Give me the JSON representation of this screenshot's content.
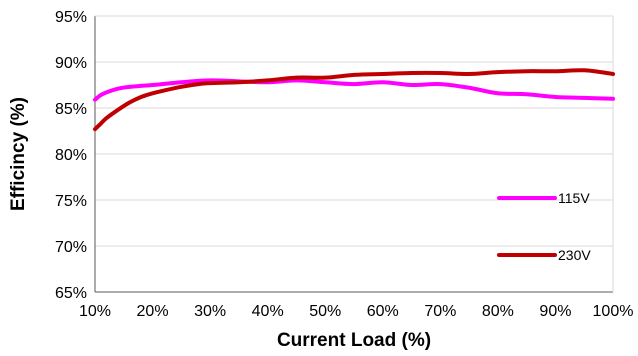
{
  "chart_data": {
    "type": "line",
    "title": "",
    "xlabel": "Current Load (%)",
    "ylabel": "Efficincy (%)",
    "xlim": [
      10,
      100
    ],
    "ylim": [
      65,
      95
    ],
    "x_ticks": [
      "10%",
      "20%",
      "30%",
      "40%",
      "50%",
      "60%",
      "70%",
      "80%",
      "90%",
      "100%"
    ],
    "y_ticks": [
      "65%",
      "70%",
      "75%",
      "80%",
      "85%",
      "90%",
      "95%"
    ],
    "grid": true,
    "legend_position": "right",
    "series": [
      {
        "name": "115V",
        "color": "#ff00ff",
        "x": [
          10,
          11,
          12,
          14,
          16,
          18,
          20,
          25,
          30,
          35,
          40,
          45,
          50,
          55,
          60,
          65,
          70,
          75,
          80,
          85,
          90,
          95,
          100
        ],
        "y": [
          85.9,
          86.4,
          86.7,
          87.1,
          87.3,
          87.4,
          87.5,
          87.8,
          88.0,
          87.9,
          87.8,
          88.0,
          87.8,
          87.6,
          87.8,
          87.5,
          87.6,
          87.2,
          86.6,
          86.5,
          86.2,
          86.1,
          86.0
        ]
      },
      {
        "name": "230V",
        "color": "#c00000",
        "x": [
          10,
          11,
          12,
          14,
          16,
          18,
          20,
          22,
          25,
          28,
          30,
          35,
          40,
          45,
          50,
          55,
          60,
          65,
          70,
          75,
          80,
          85,
          90,
          95,
          100
        ],
        "y": [
          82.7,
          83.3,
          83.9,
          84.8,
          85.6,
          86.2,
          86.6,
          86.9,
          87.3,
          87.6,
          87.7,
          87.8,
          88.0,
          88.3,
          88.3,
          88.6,
          88.7,
          88.8,
          88.8,
          88.7,
          88.9,
          89.0,
          89.0,
          89.1,
          88.7
        ]
      }
    ]
  }
}
